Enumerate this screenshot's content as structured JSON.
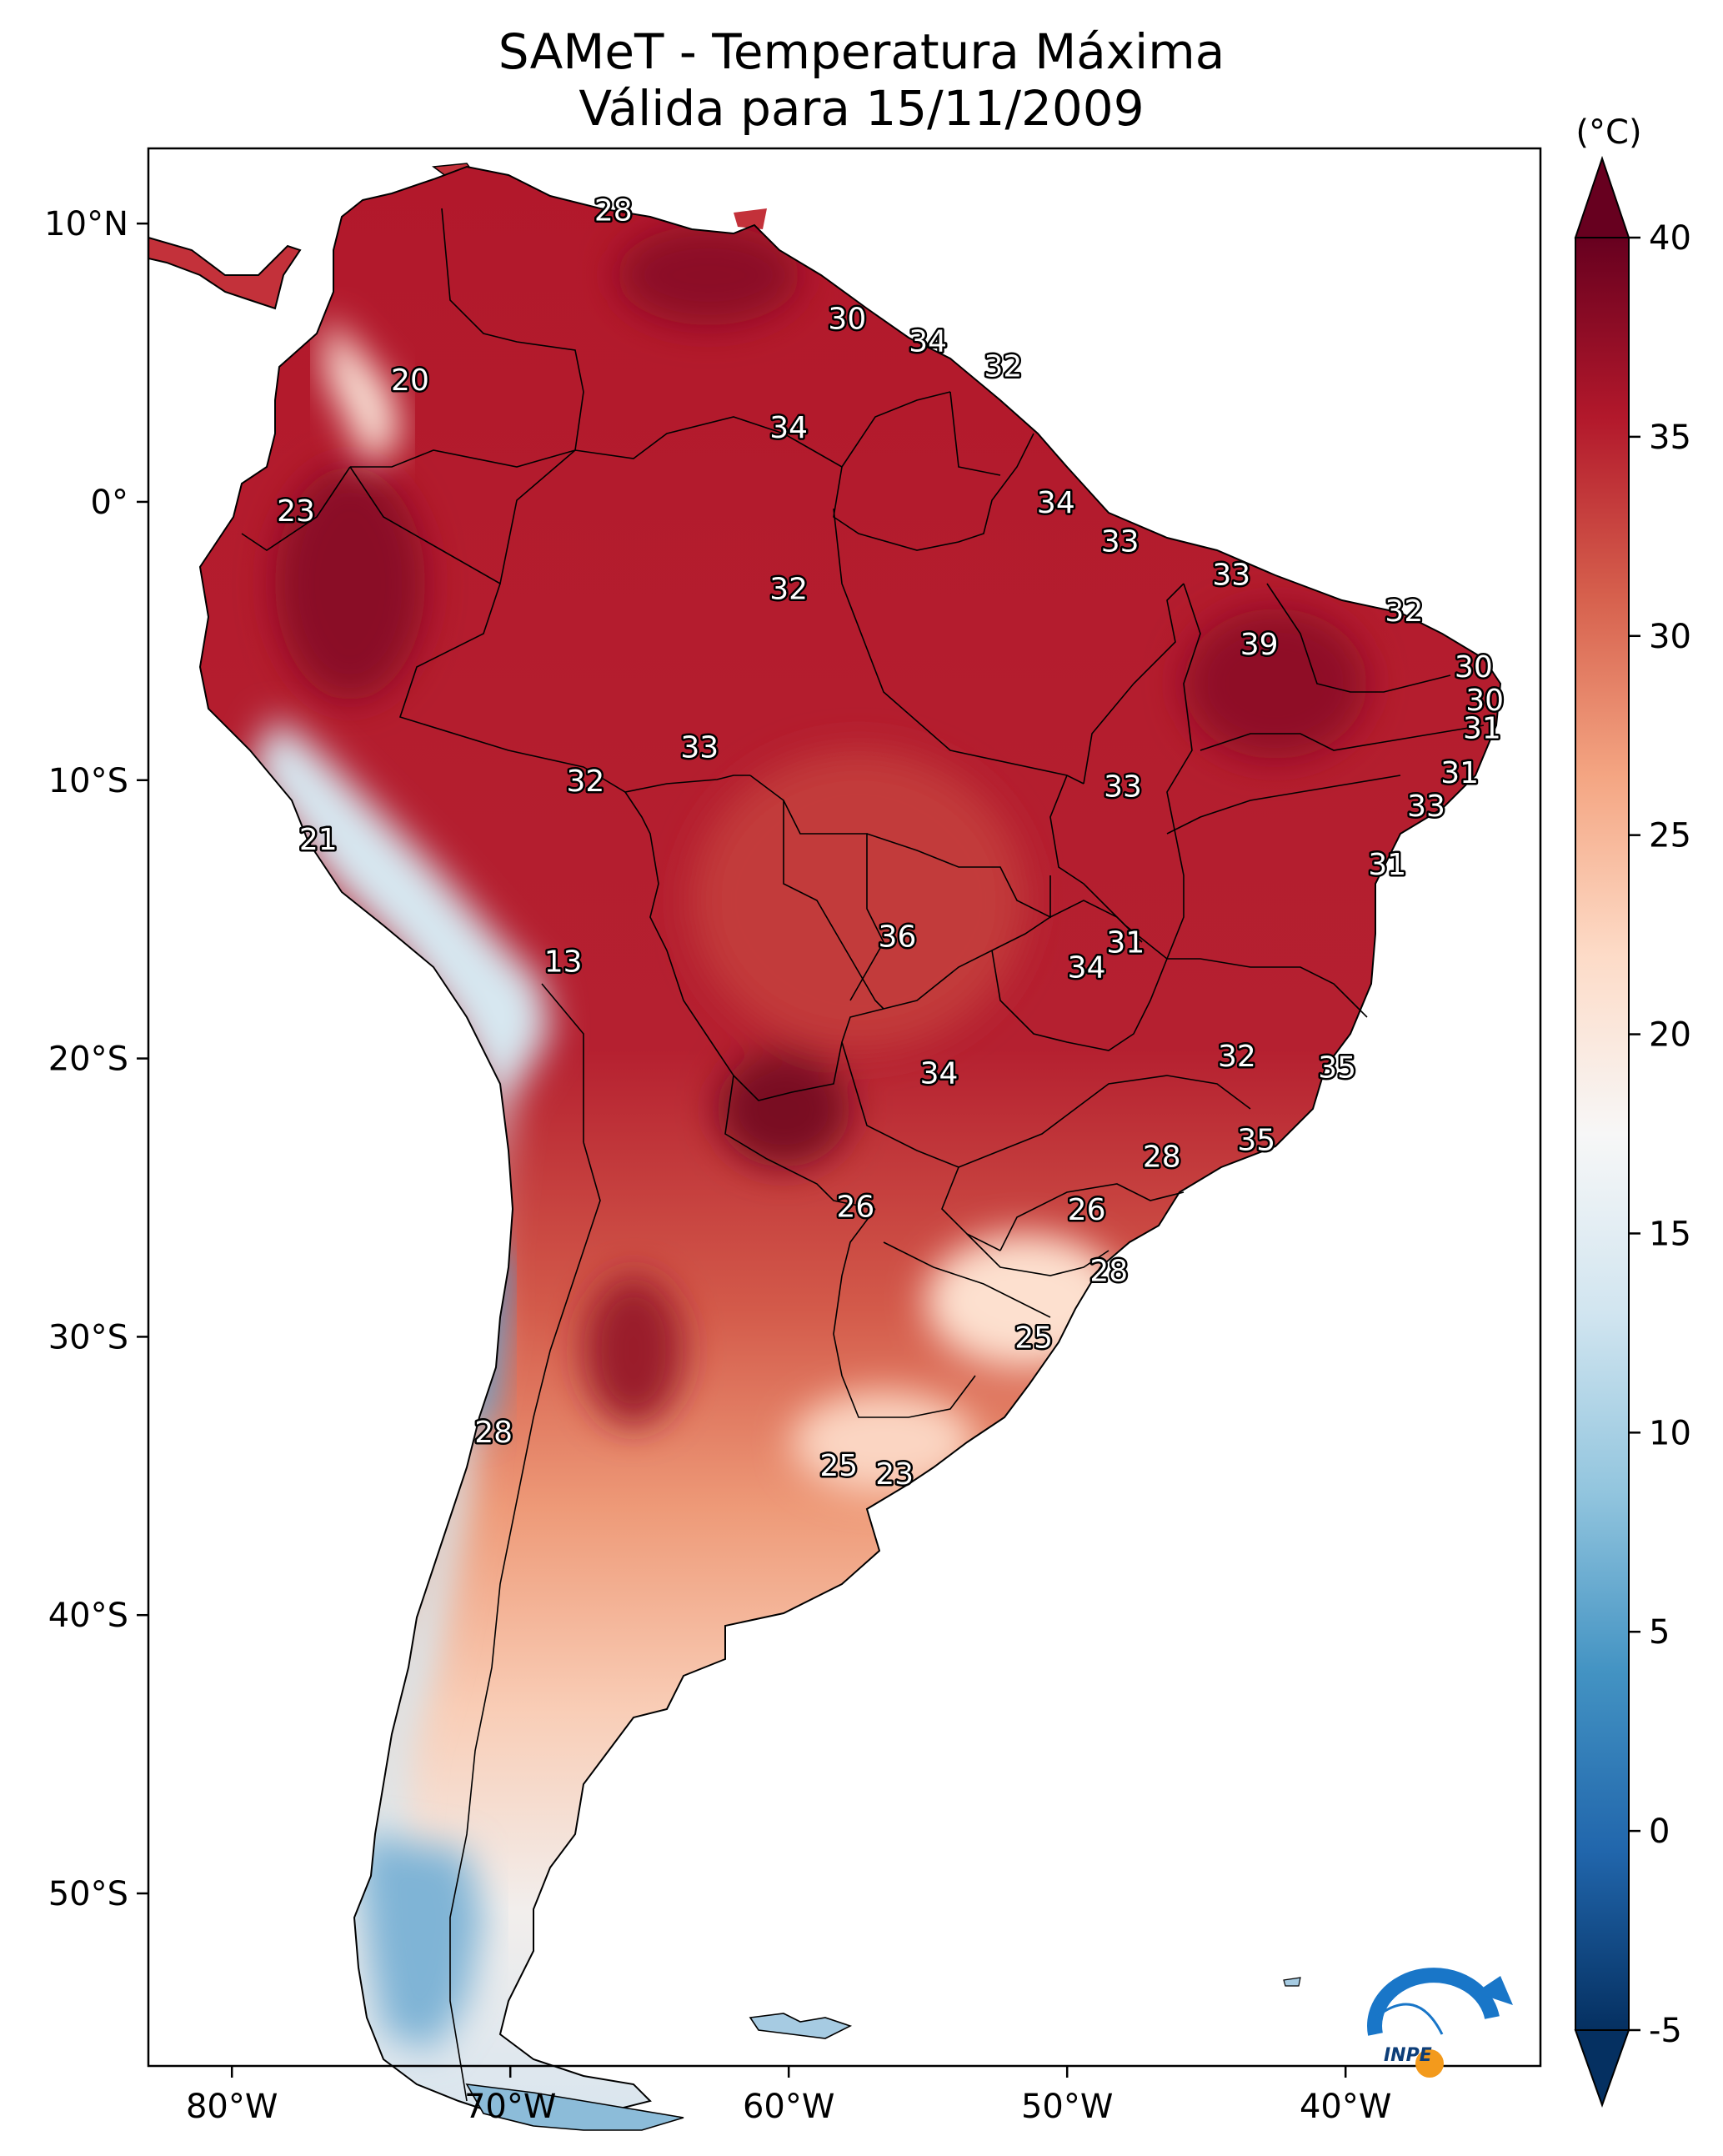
{
  "title": {
    "line1": "SAMeT - Temperatura Máxima",
    "line2": "Válida para 15/11/2009"
  },
  "map": {
    "lat_ticks": [
      {
        "value": 10,
        "label": "10°N"
      },
      {
        "value": 0,
        "label": "0°"
      },
      {
        "value": -10,
        "label": "10°S"
      },
      {
        "value": -20,
        "label": "20°S"
      },
      {
        "value": -30,
        "label": "30°S"
      },
      {
        "value": -40,
        "label": "40°S"
      },
      {
        "value": -50,
        "label": "50°S"
      }
    ],
    "lon_ticks": [
      {
        "value": -80,
        "label": "80°W"
      },
      {
        "value": -70,
        "label": "70°W"
      },
      {
        "value": -60,
        "label": "60°W"
      },
      {
        "value": -50,
        "label": "50°W"
      },
      {
        "value": -40,
        "label": "40°W"
      }
    ],
    "station_values": [
      {
        "value": "28",
        "lon": -66.3,
        "lat": 10.5
      },
      {
        "value": "20",
        "lon": -73.6,
        "lat": 4.4
      },
      {
        "value": "23",
        "lon": -77.7,
        "lat": -0.3
      },
      {
        "value": "30",
        "lon": -57.9,
        "lat": 6.6
      },
      {
        "value": "34",
        "lon": -55.0,
        "lat": 5.8
      },
      {
        "value": "32",
        "lon": -52.3,
        "lat": 4.9
      },
      {
        "value": "34",
        "lon": -60.0,
        "lat": 2.7
      },
      {
        "value": "34",
        "lon": -50.4,
        "lat": 0.0
      },
      {
        "value": "33",
        "lon": -48.1,
        "lat": -1.4
      },
      {
        "value": "33",
        "lon": -44.1,
        "lat": -2.6
      },
      {
        "value": "32",
        "lon": -60.0,
        "lat": -3.1
      },
      {
        "value": "32",
        "lon": -37.9,
        "lat": -3.9
      },
      {
        "value": "39",
        "lon": -43.1,
        "lat": -5.1
      },
      {
        "value": "30",
        "lon": -35.4,
        "lat": -5.9
      },
      {
        "value": "30",
        "lon": -35.0,
        "lat": -7.1
      },
      {
        "value": "31",
        "lon": -35.1,
        "lat": -8.1
      },
      {
        "value": "33",
        "lon": -63.2,
        "lat": -8.8
      },
      {
        "value": "32",
        "lon": -67.3,
        "lat": -10.0
      },
      {
        "value": "33",
        "lon": -48.0,
        "lat": -10.2
      },
      {
        "value": "31",
        "lon": -35.9,
        "lat": -9.7
      },
      {
        "value": "33",
        "lon": -37.1,
        "lat": -10.9
      },
      {
        "value": "21",
        "lon": -76.9,
        "lat": -12.1
      },
      {
        "value": "31",
        "lon": -38.5,
        "lat": -13.0
      },
      {
        "value": "36",
        "lon": -56.1,
        "lat": -15.6
      },
      {
        "value": "31",
        "lon": -47.9,
        "lat": -15.8
      },
      {
        "value": "34",
        "lon": -49.3,
        "lat": -16.7
      },
      {
        "value": "13",
        "lon": -68.1,
        "lat": -16.5
      },
      {
        "value": "32",
        "lon": -43.9,
        "lat": -19.9
      },
      {
        "value": "35",
        "lon": -40.3,
        "lat": -20.3
      },
      {
        "value": "34",
        "lon": -54.6,
        "lat": -20.5
      },
      {
        "value": "35",
        "lon": -43.2,
        "lat": -22.9
      },
      {
        "value": "28",
        "lon": -46.6,
        "lat": -23.5
      },
      {
        "value": "26",
        "lon": -57.6,
        "lat": -25.3
      },
      {
        "value": "26",
        "lon": -49.3,
        "lat": -25.4
      },
      {
        "value": "28",
        "lon": -48.5,
        "lat": -27.6
      },
      {
        "value": "25",
        "lon": -51.2,
        "lat": -30.0
      },
      {
        "value": "28",
        "lon": -70.6,
        "lat": -33.4
      },
      {
        "value": "25",
        "lon": -58.2,
        "lat": -34.6
      },
      {
        "value": "23",
        "lon": -56.2,
        "lat": -34.9
      }
    ]
  },
  "colorbar": {
    "unit": "(°C)",
    "ticks": [
      {
        "value": 40,
        "label": "40"
      },
      {
        "value": 35,
        "label": "35"
      },
      {
        "value": 30,
        "label": "30"
      },
      {
        "value": 25,
        "label": "25"
      },
      {
        "value": 20,
        "label": "20"
      },
      {
        "value": 15,
        "label": "15"
      },
      {
        "value": 10,
        "label": "10"
      },
      {
        "value": 5,
        "label": "5"
      },
      {
        "value": 0,
        "label": "0"
      },
      {
        "value": -5,
        "label": "-5"
      }
    ],
    "min": -5,
    "max": 40,
    "colors": [
      "#053061",
      "#2166ac",
      "#4393c3",
      "#92c5de",
      "#d1e5f0",
      "#f7f7f7",
      "#fddbc7",
      "#f4a582",
      "#d6604d",
      "#b2182b",
      "#67001f"
    ]
  },
  "logo": {
    "text": "INPE"
  }
}
